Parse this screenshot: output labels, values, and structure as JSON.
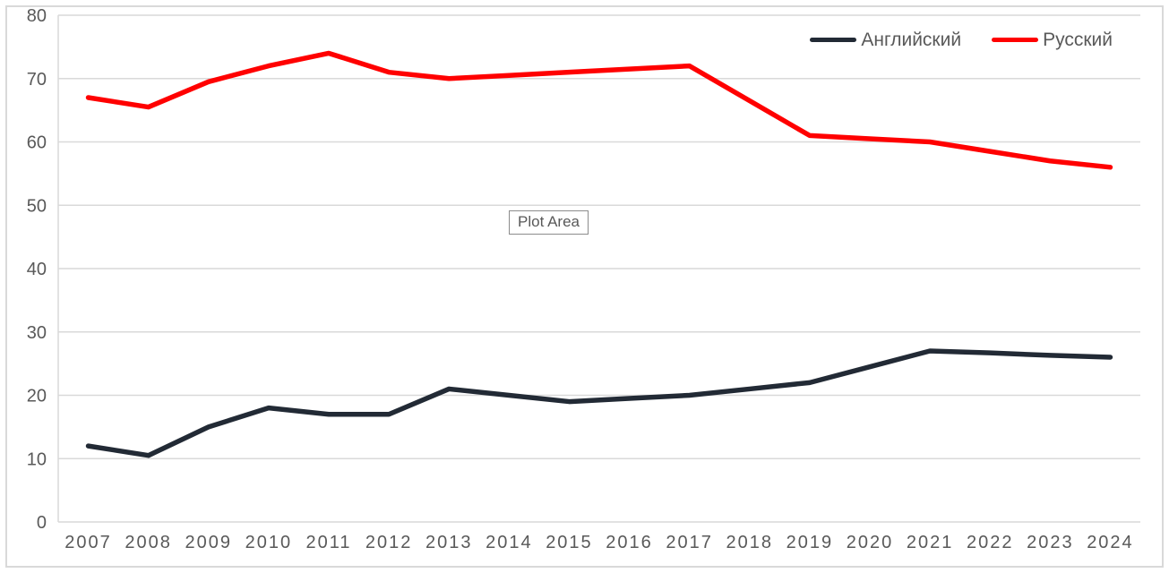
{
  "plot_area_label": {
    "text": "Plot Area"
  },
  "colors": {
    "background": "#ffffff",
    "chart_border": "#d9d9d9",
    "gridline": "#d9d9d9",
    "axis_text": "#595959",
    "legend_text": "#595959",
    "tooltip_border": "#8c8c8c",
    "tooltip_text": "#595959"
  },
  "chart_data": {
    "type": "line",
    "title": "",
    "xlabel": "",
    "ylabel": "",
    "categories": [
      "2007",
      "2008",
      "2009",
      "2010",
      "2011",
      "2012",
      "2013",
      "2014",
      "2015",
      "2016",
      "2017",
      "2018",
      "2019",
      "2020",
      "2021",
      "2022",
      "2023",
      "2024"
    ],
    "series": [
      {
        "name": "Английский",
        "color": "#222a35",
        "values": [
          12,
          10.5,
          15,
          18,
          17,
          17,
          21,
          20,
          19,
          19.5,
          20,
          21,
          22,
          24.5,
          27,
          26.7,
          26.3,
          26
        ]
      },
      {
        "name": "Русский",
        "color": "#ff0000",
        "values": [
          67,
          65.5,
          69.5,
          72,
          74,
          71,
          70,
          70.5,
          71,
          71.5,
          72,
          66.5,
          61,
          60.5,
          60,
          58.5,
          57,
          56
        ]
      }
    ],
    "ylim": [
      0,
      80
    ],
    "ytick_step": 10,
    "grid": true,
    "legend_position": "top-right"
  }
}
